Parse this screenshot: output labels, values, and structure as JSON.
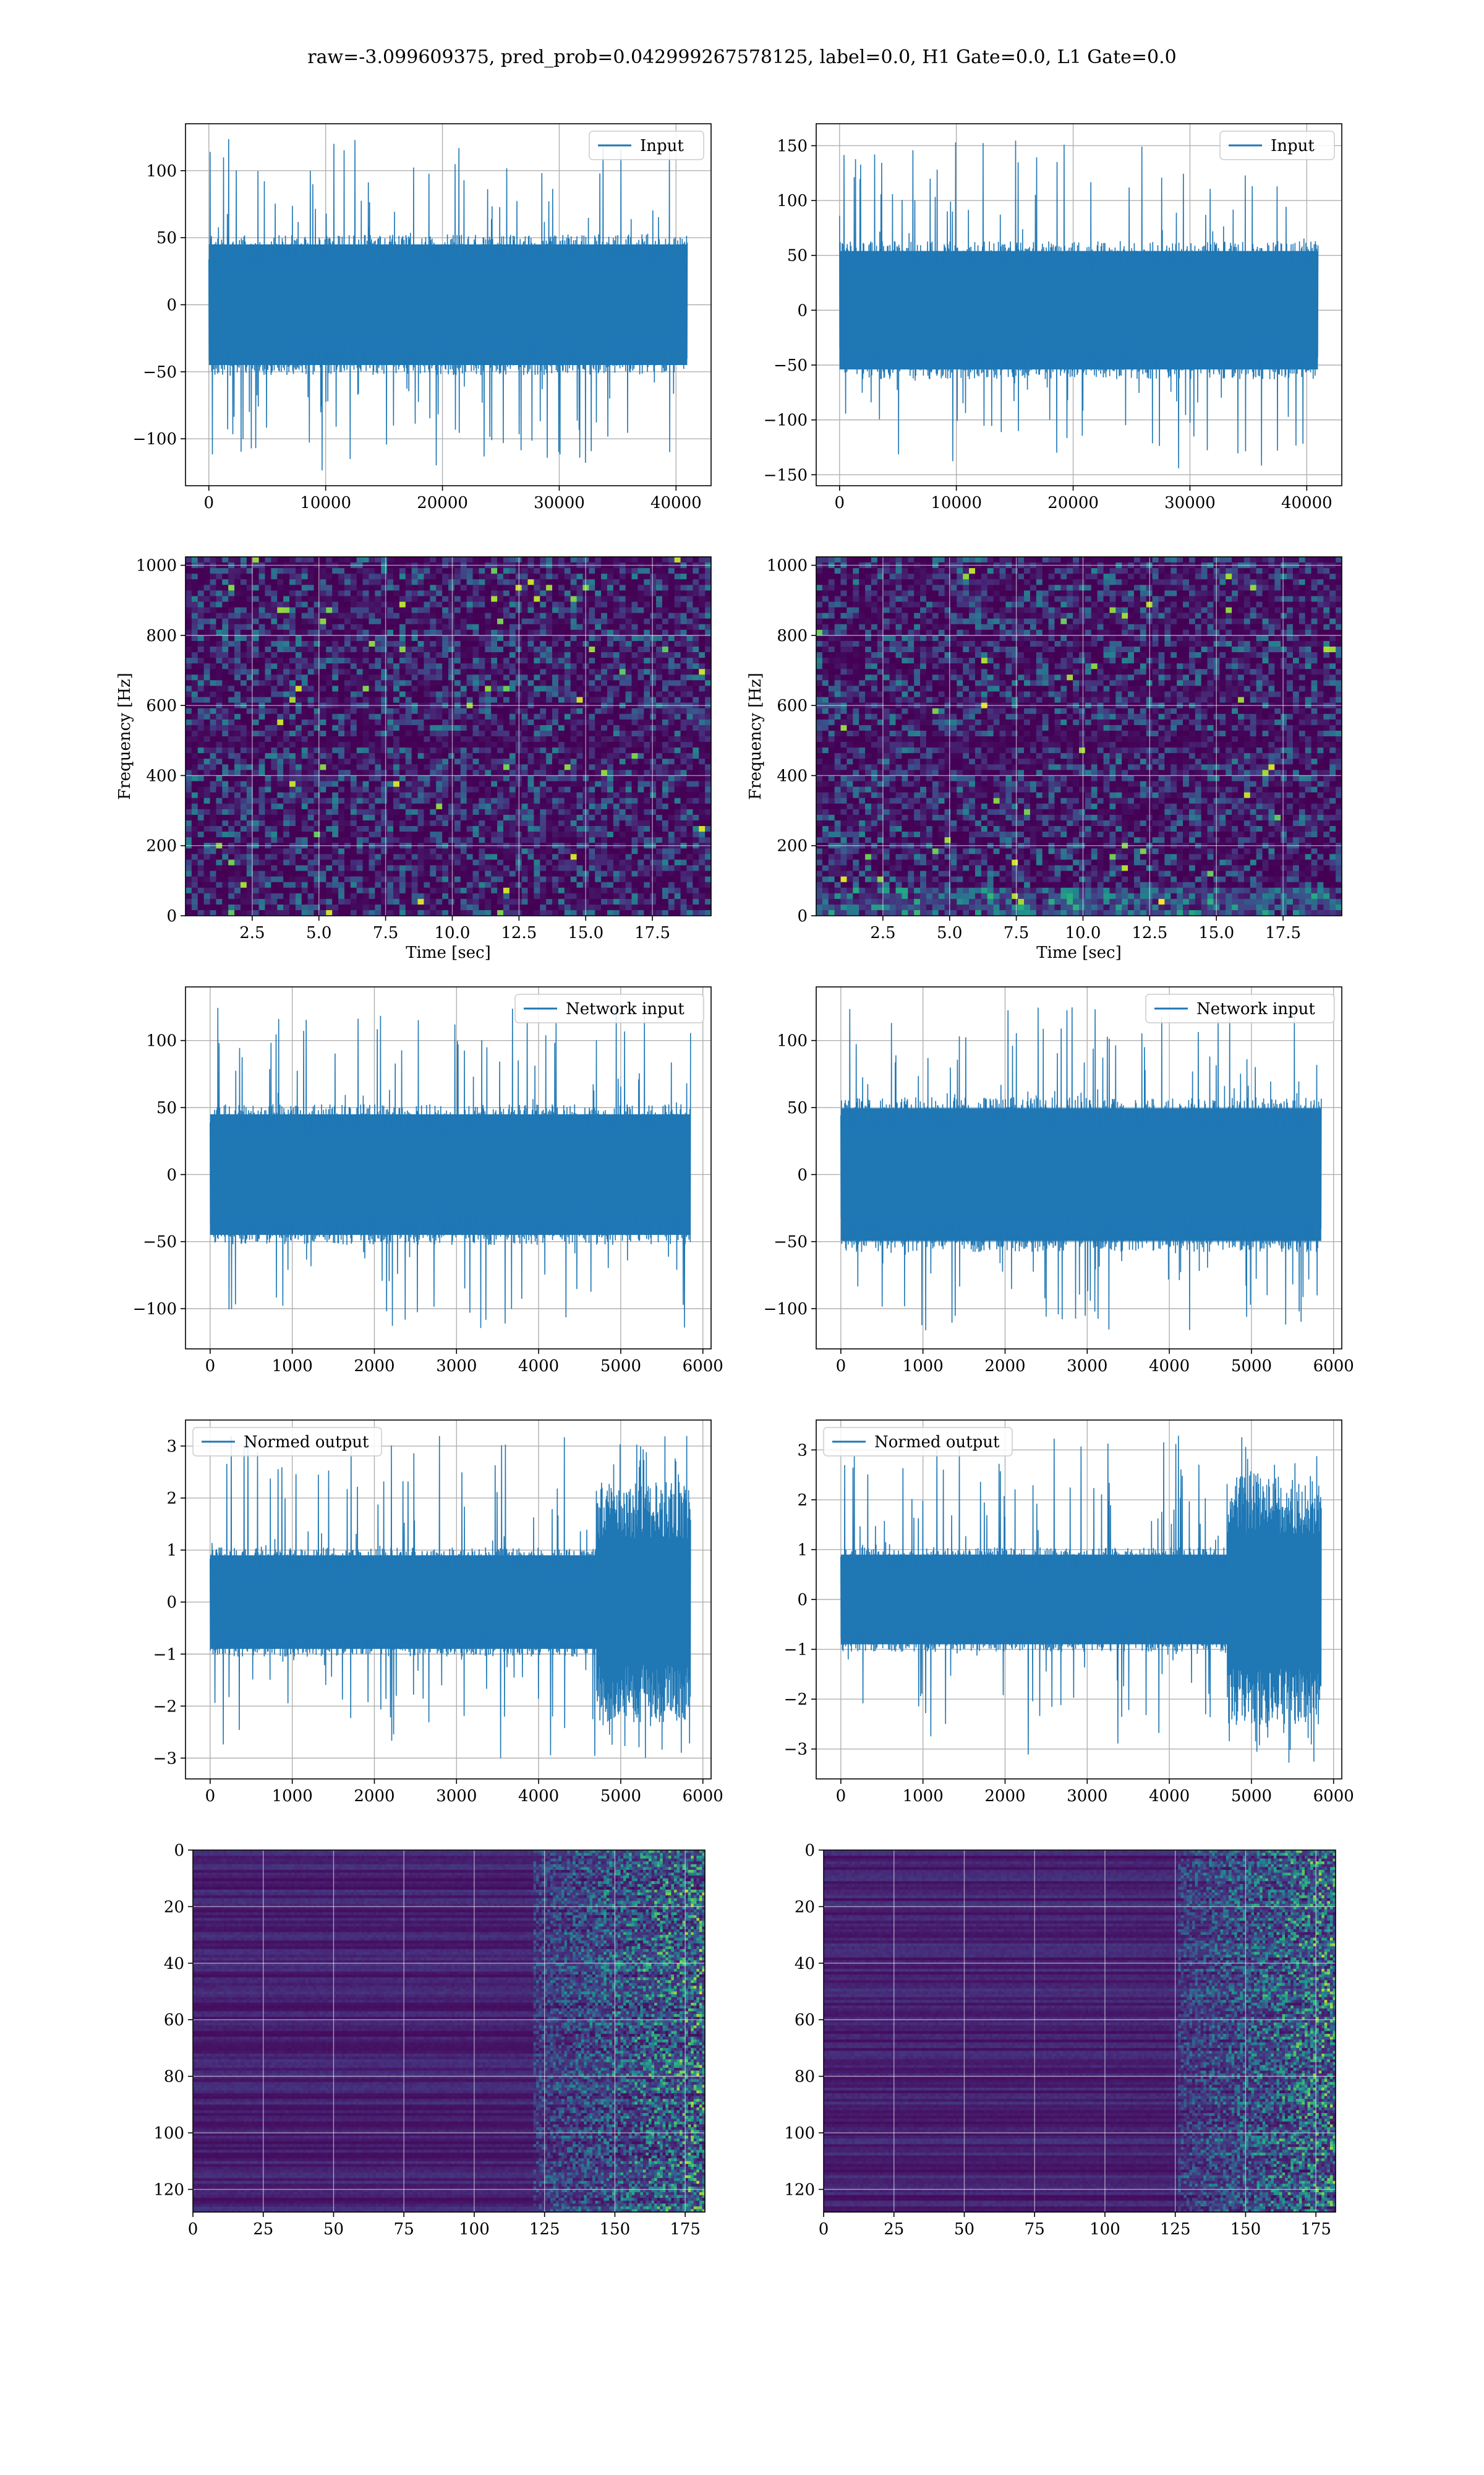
{
  "figure": {
    "title": "raw=-3.099609375, pred_prob=0.042999267578125, label=0.0, H1 Gate=0.0, L1 Gate=0.0",
    "signal_color": "#1f77b4"
  },
  "chart_data": [
    {
      "id": "input-left",
      "type": "line",
      "legend": "Input",
      "legend_loc": "upper right",
      "xlim": [
        -2000,
        43000
      ],
      "ylim": [
        -135,
        135
      ],
      "xticks": [
        0,
        10000,
        20000,
        30000,
        40000
      ],
      "yticks": [
        -100,
        -50,
        0,
        50,
        100
      ],
      "x_range": [
        0,
        40960
      ],
      "band": [
        -50,
        50
      ],
      "peak": [
        -125,
        125
      ],
      "xlabel": "",
      "ylabel": "",
      "grid": true
    },
    {
      "id": "input-right",
      "type": "line",
      "legend": "Input",
      "legend_loc": "upper right",
      "xlim": [
        -2000,
        43000
      ],
      "ylim": [
        -160,
        170
      ],
      "xticks": [
        0,
        10000,
        20000,
        30000,
        40000
      ],
      "yticks": [
        -150,
        -100,
        -50,
        0,
        50,
        100,
        150
      ],
      "x_range": [
        0,
        40960
      ],
      "band": [
        -60,
        60
      ],
      "peak": [
        -145,
        155
      ],
      "xlabel": "",
      "ylabel": "",
      "grid": true
    },
    {
      "id": "spec-left",
      "type": "heatmap",
      "xlim": [
        0,
        19.7
      ],
      "ylim": [
        0,
        1024
      ],
      "xticks": [
        2.5,
        5.0,
        7.5,
        10.0,
        12.5,
        15.0,
        17.5
      ],
      "yticks": [
        0,
        200,
        400,
        600,
        800,
        1000
      ],
      "xlabel": "Time [sec]",
      "ylabel": "Frequency [Hz]",
      "grid": true
    },
    {
      "id": "spec-right",
      "type": "heatmap",
      "xlim": [
        0,
        19.7
      ],
      "ylim": [
        0,
        1024
      ],
      "xticks": [
        2.5,
        5.0,
        7.5,
        10.0,
        12.5,
        15.0,
        17.5
      ],
      "yticks": [
        0,
        200,
        400,
        600,
        800,
        1000
      ],
      "xlabel": "Time [sec]",
      "ylabel": "Frequency [Hz]",
      "grid": true
    },
    {
      "id": "netin-left",
      "type": "line",
      "legend": "Network input",
      "legend_loc": "upper right",
      "xlim": [
        -300,
        6100
      ],
      "ylim": [
        -130,
        140
      ],
      "xticks": [
        0,
        1000,
        2000,
        3000,
        4000,
        5000,
        6000
      ],
      "yticks": [
        -100,
        -50,
        0,
        50,
        100
      ],
      "x_range": [
        0,
        5850
      ],
      "band": [
        -50,
        50
      ],
      "peak": [
        -115,
        125
      ],
      "xlabel": "",
      "ylabel": "",
      "grid": true
    },
    {
      "id": "netin-right",
      "type": "line",
      "legend": "Network input",
      "legend_loc": "upper right",
      "xlim": [
        -300,
        6100
      ],
      "ylim": [
        -130,
        140
      ],
      "xticks": [
        0,
        1000,
        2000,
        3000,
        4000,
        5000,
        6000
      ],
      "yticks": [
        -100,
        -50,
        0,
        50,
        100
      ],
      "x_range": [
        0,
        5850
      ],
      "band": [
        -55,
        55
      ],
      "peak": [
        -118,
        125
      ],
      "xlabel": "",
      "ylabel": "",
      "grid": true
    },
    {
      "id": "norm-left",
      "type": "line",
      "legend": "Normed output",
      "legend_loc": "upper left",
      "xlim": [
        -300,
        6100
      ],
      "ylim": [
        -3.4,
        3.5
      ],
      "xticks": [
        0,
        1000,
        2000,
        3000,
        4000,
        5000,
        6000
      ],
      "yticks": [
        -3,
        -2,
        -1,
        0,
        1,
        2,
        3
      ],
      "x_range": [
        0,
        5850
      ],
      "band": [
        -1,
        1
      ],
      "peak": [
        -3.0,
        3.2
      ],
      "burst_x": [
        4700,
        5850
      ],
      "burst_band": [
        -2.2,
        2.2
      ],
      "xlabel": "",
      "ylabel": "",
      "grid": true
    },
    {
      "id": "norm-right",
      "type": "line",
      "legend": "Normed output",
      "legend_loc": "upper left",
      "xlim": [
        -300,
        6100
      ],
      "ylim": [
        -3.6,
        3.6
      ],
      "xticks": [
        0,
        1000,
        2000,
        3000,
        4000,
        5000,
        6000
      ],
      "yticks": [
        -3,
        -2,
        -1,
        0,
        1,
        2,
        3
      ],
      "x_range": [
        0,
        5850
      ],
      "band": [
        -1,
        1
      ],
      "peak": [
        -3.3,
        3.3
      ],
      "burst_x": [
        4700,
        5850
      ],
      "burst_band": [
        -2.4,
        2.4
      ],
      "xlabel": "",
      "ylabel": "",
      "grid": true
    },
    {
      "id": "feat-left",
      "type": "heatmap",
      "xlim": [
        0,
        182
      ],
      "ylim": [
        128,
        0
      ],
      "xticks": [
        0,
        25,
        50,
        75,
        100,
        125,
        150,
        175
      ],
      "yticks": [
        0,
        20,
        40,
        60,
        80,
        100,
        120
      ],
      "active_from": 120,
      "xlabel": "",
      "ylabel": "",
      "grid": true
    },
    {
      "id": "feat-right",
      "type": "heatmap",
      "xlim": [
        0,
        182
      ],
      "ylim": [
        128,
        0
      ],
      "xticks": [
        0,
        25,
        50,
        75,
        100,
        125,
        150,
        175
      ],
      "yticks": [
        0,
        20,
        40,
        60,
        80,
        100,
        120
      ],
      "active_from": 125,
      "xlabel": "",
      "ylabel": "",
      "grid": true
    }
  ]
}
